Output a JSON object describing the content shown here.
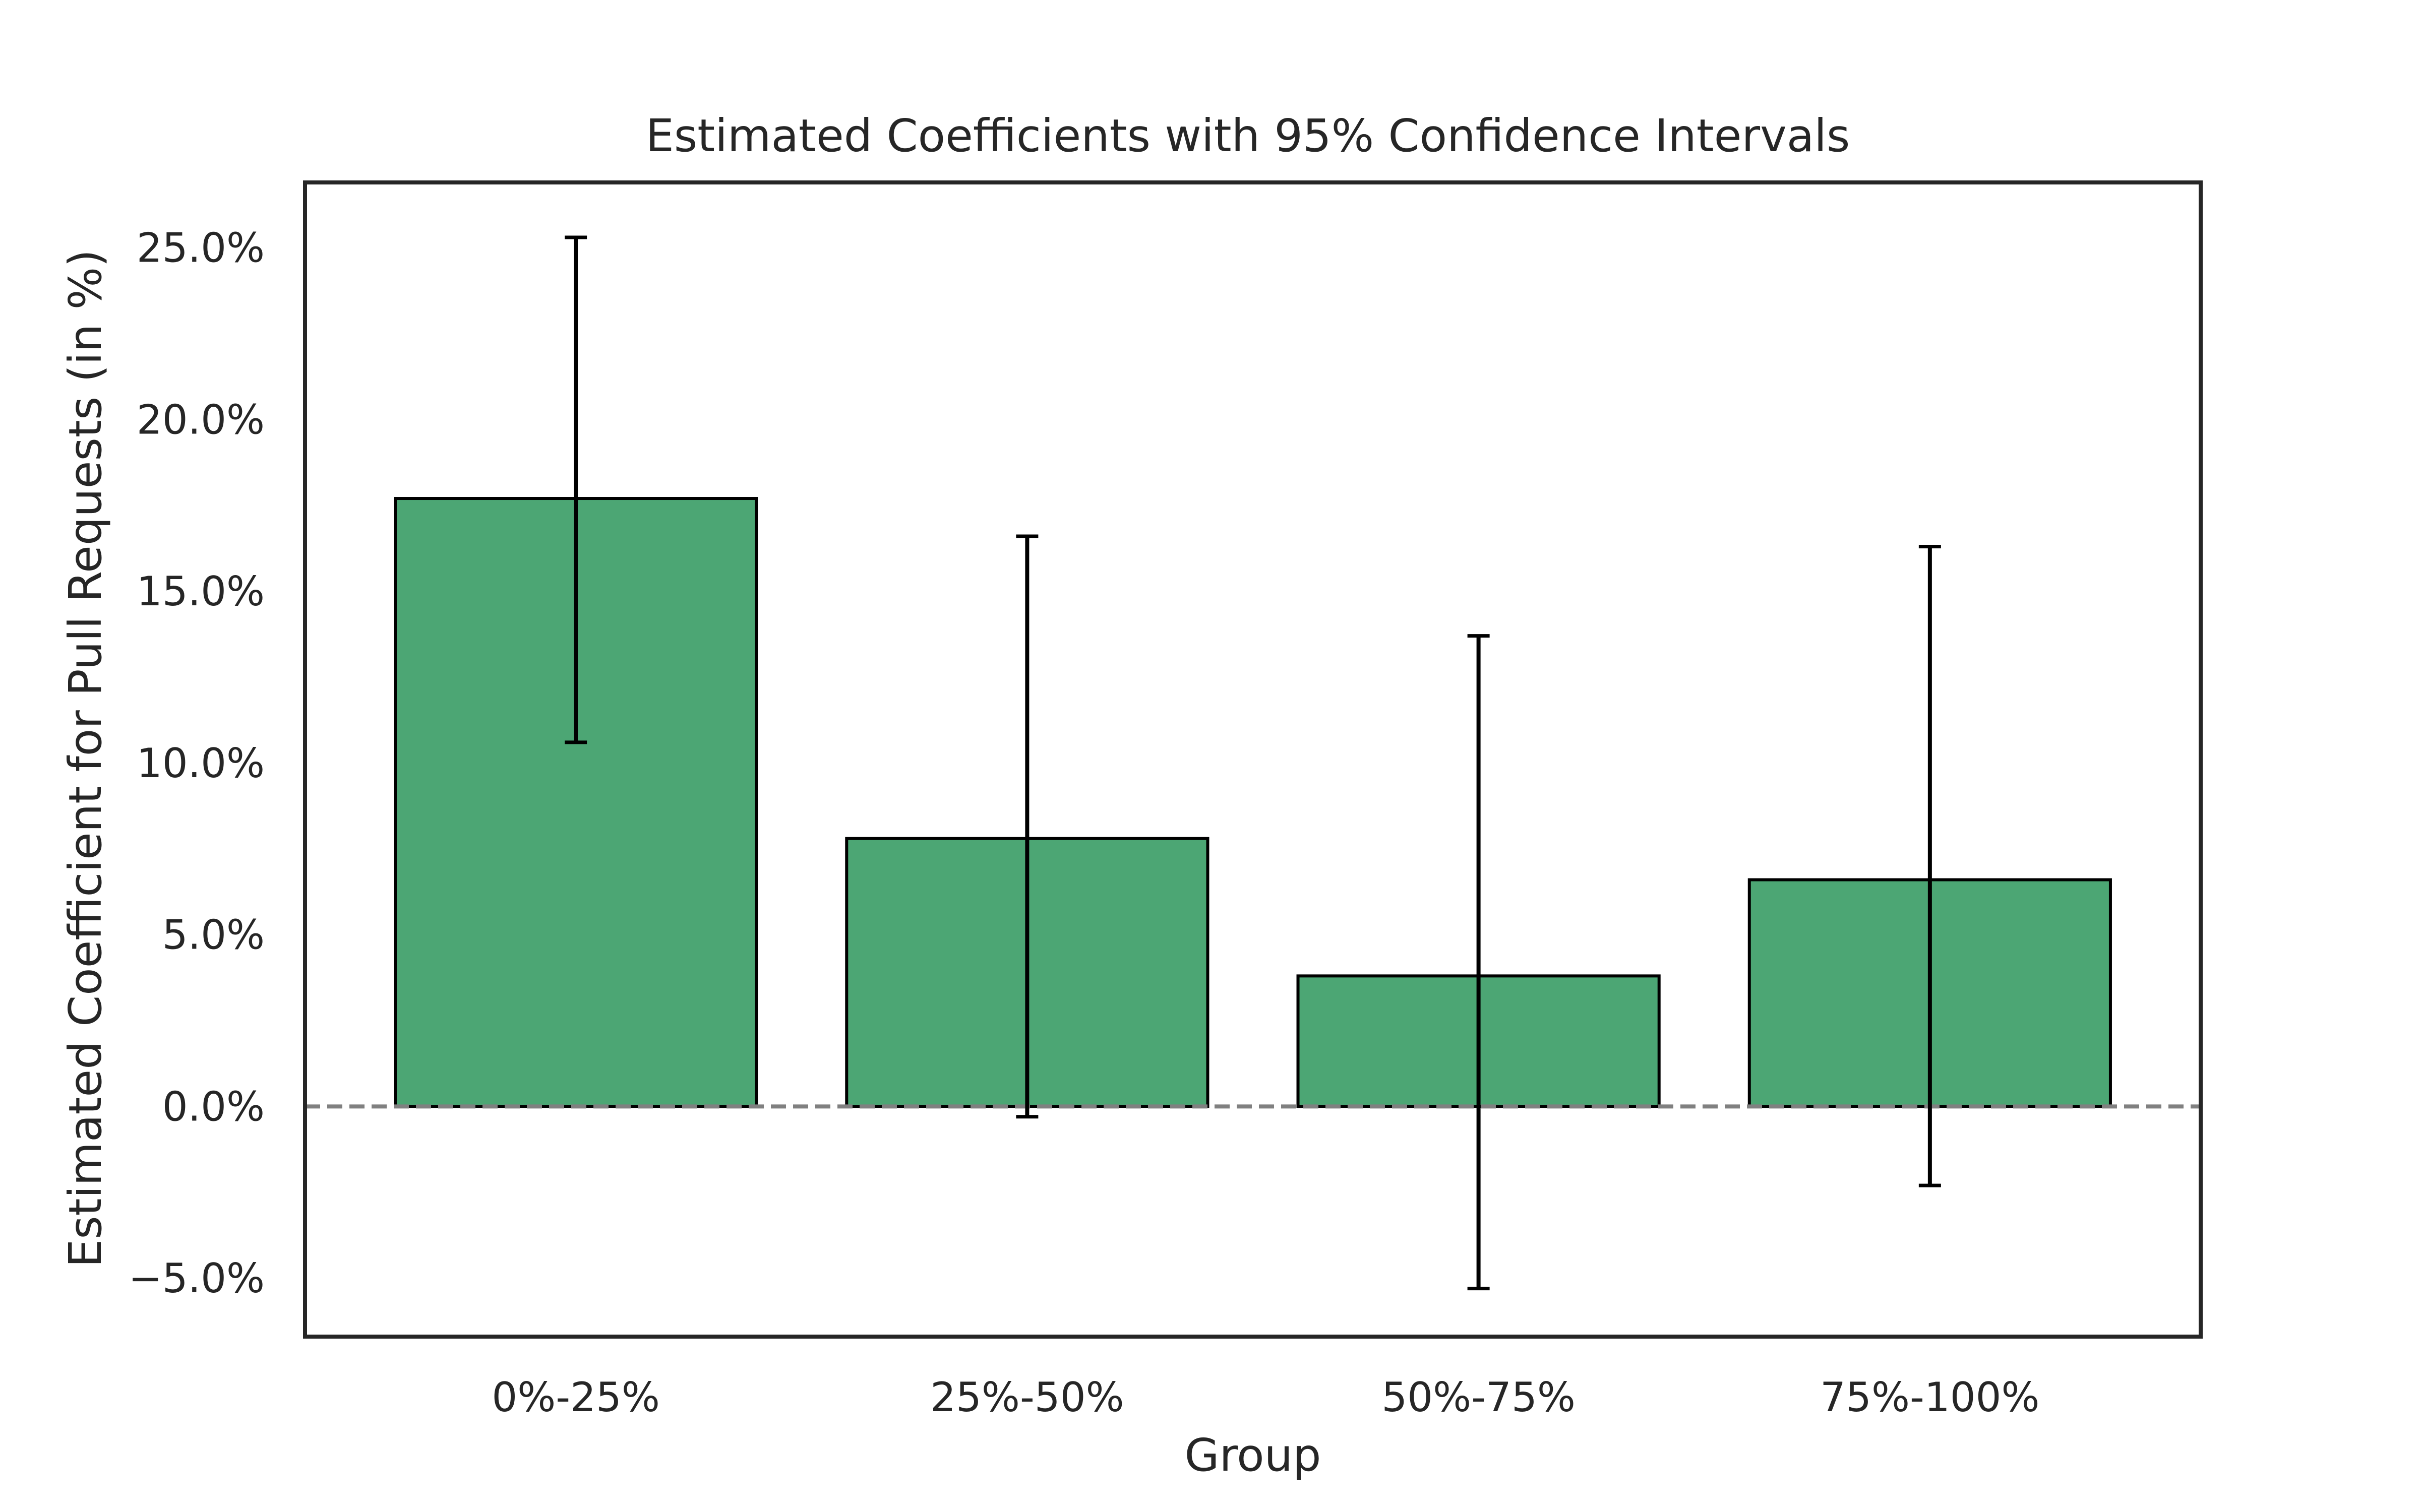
{
  "chart_data": {
    "type": "bar",
    "title": "Estimated Coefficients with 95% Confidence Intervals",
    "xlabel": "Group",
    "ylabel": "Estimated Coefficient for Pull Requests (in %)",
    "categories": [
      "0%-25%",
      "25%-50%",
      "50%-75%",
      "75%-100%"
    ],
    "values": [
      17.7,
      7.8,
      3.8,
      6.6
    ],
    "ci_lower": [
      10.6,
      -0.3,
      -5.3,
      -2.3
    ],
    "ci_upper": [
      25.3,
      16.6,
      13.7,
      16.3
    ],
    "ylim": [
      -6.7,
      26.9
    ],
    "yticks": [
      -5.0,
      0.0,
      5.0,
      10.0,
      15.0,
      20.0,
      25.0
    ],
    "ytick_labels": [
      "−5.0%",
      "0.0%",
      "5.0%",
      "10.0%",
      "15.0%",
      "20.0%",
      "25.0%"
    ],
    "reference_line": 0,
    "grid": false,
    "bar_color": "#4ca674",
    "edge_color": "#000000",
    "reference_line_color": "#808080"
  }
}
